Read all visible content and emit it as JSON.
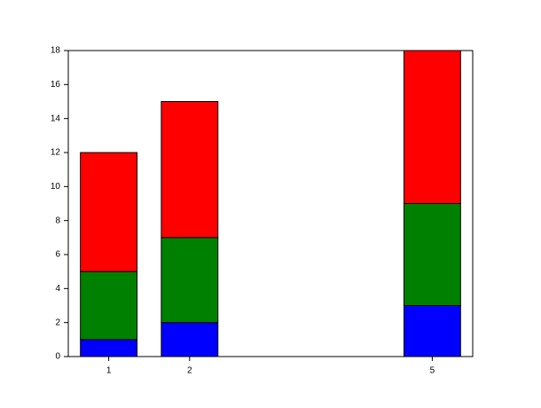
{
  "chart_data": {
    "type": "bar",
    "stacked": true,
    "x": [
      1,
      2,
      5
    ],
    "series": [
      {
        "color": "#0000ff",
        "values": [
          1,
          2,
          3
        ]
      },
      {
        "color": "#008000",
        "values": [
          4,
          5,
          6
        ]
      },
      {
        "color": "#ff0000",
        "values": [
          7,
          8,
          9
        ]
      }
    ],
    "bar_width": 0.7,
    "xlim": [
      0.5,
      5.5
    ],
    "xticks": [
      1,
      2,
      5
    ],
    "ylim": [
      0,
      18
    ],
    "yticks": [
      0,
      2,
      4,
      6,
      8,
      10,
      12,
      14,
      16,
      18
    ]
  }
}
